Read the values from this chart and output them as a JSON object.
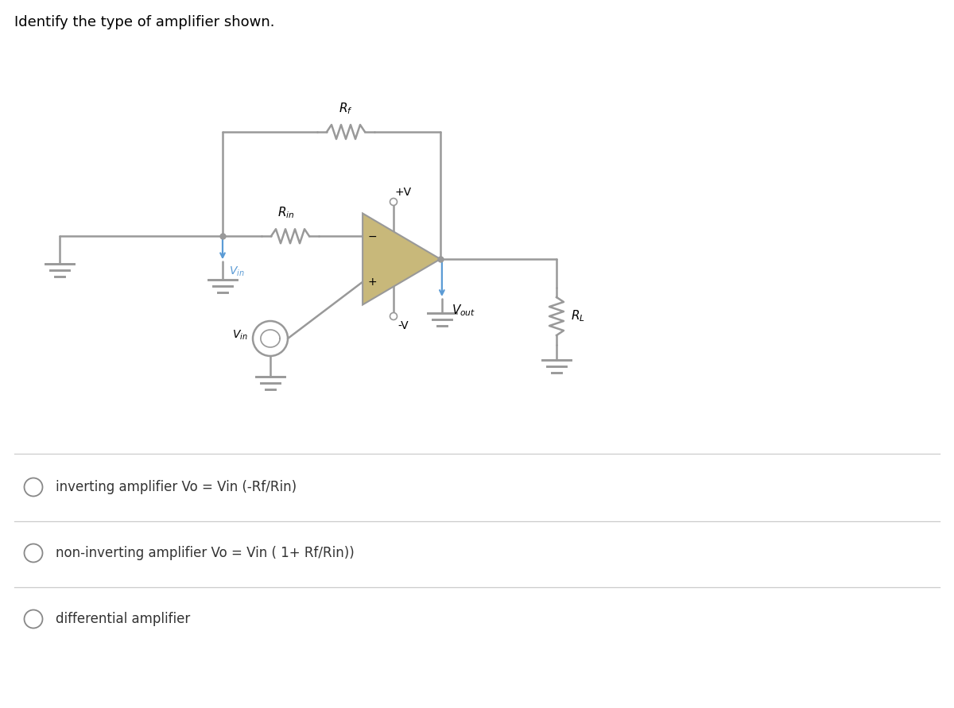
{
  "title": "Identify the type of amplifier shown.",
  "title_fontsize": 13,
  "title_color": "#000000",
  "background_color": "#ffffff",
  "circuit_color": "#999999",
  "blue_color": "#5b9bd5",
  "opamp_fill": "#c8b87a",
  "opamp_edge": "#aaaaaa",
  "options": [
    "inverting amplifier Vo = Vin (-Rf/Rin)",
    "non-inverting amplifier Vo = Vin ( 1+ Rf/Rin))",
    "differential amplifier"
  ],
  "option_fontsize": 12,
  "sep_color": "#cccccc",
  "radio_color": "#888888",
  "text_color": "#333333"
}
